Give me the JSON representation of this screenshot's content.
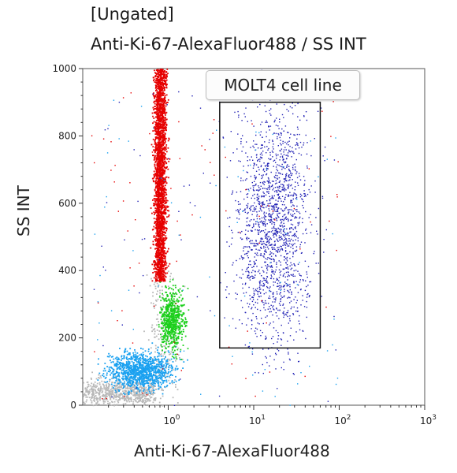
{
  "header": {
    "gate": "[Ungated]",
    "plot_title": "Anti-Ki-67-AlexaFluor488 / SS INT"
  },
  "region": {
    "label": "MOLT4 cell line"
  },
  "chart_data": {
    "type": "scatter",
    "xlabel": "Anti-Ki-67-AlexaFluor488",
    "ylabel": "SS INT",
    "xscale": "log",
    "xlim": [
      0.1,
      1000
    ],
    "ylim": [
      0,
      1000
    ],
    "x_ticks": [
      1,
      10,
      100,
      1000
    ],
    "y_ticks": [
      0,
      200,
      400,
      600,
      800,
      1000
    ],
    "grid": false,
    "gate_region": {
      "name": "MOLT4 cell line",
      "x": [
        4,
        60
      ],
      "y": [
        170,
        900
      ]
    },
    "populations": [
      {
        "color": "#e60000",
        "x_range": [
          0.6,
          1.05
        ],
        "y_range": [
          370,
          1000
        ],
        "count": 2600
      },
      {
        "color": "#1aa1f0",
        "x_range": [
          0.2,
          1.1
        ],
        "y_range": [
          50,
          160
        ],
        "count": 1100
      },
      {
        "color": "#1ccf1c",
        "x_range": [
          0.8,
          1.5
        ],
        "y_range": [
          170,
          340
        ],
        "count": 650
      },
      {
        "color": "#b9b9b9",
        "x_range": [
          0.1,
          1.2
        ],
        "y_range": [
          20,
          420
        ],
        "count": 900
      },
      {
        "color": "#2222b5",
        "x_range": [
          5,
          55
        ],
        "y_range": [
          170,
          900
        ],
        "count": 1700
      }
    ],
    "tick_labels": {
      "y": [
        "0",
        "200",
        "400",
        "600",
        "800",
        "1000"
      ]
    }
  }
}
